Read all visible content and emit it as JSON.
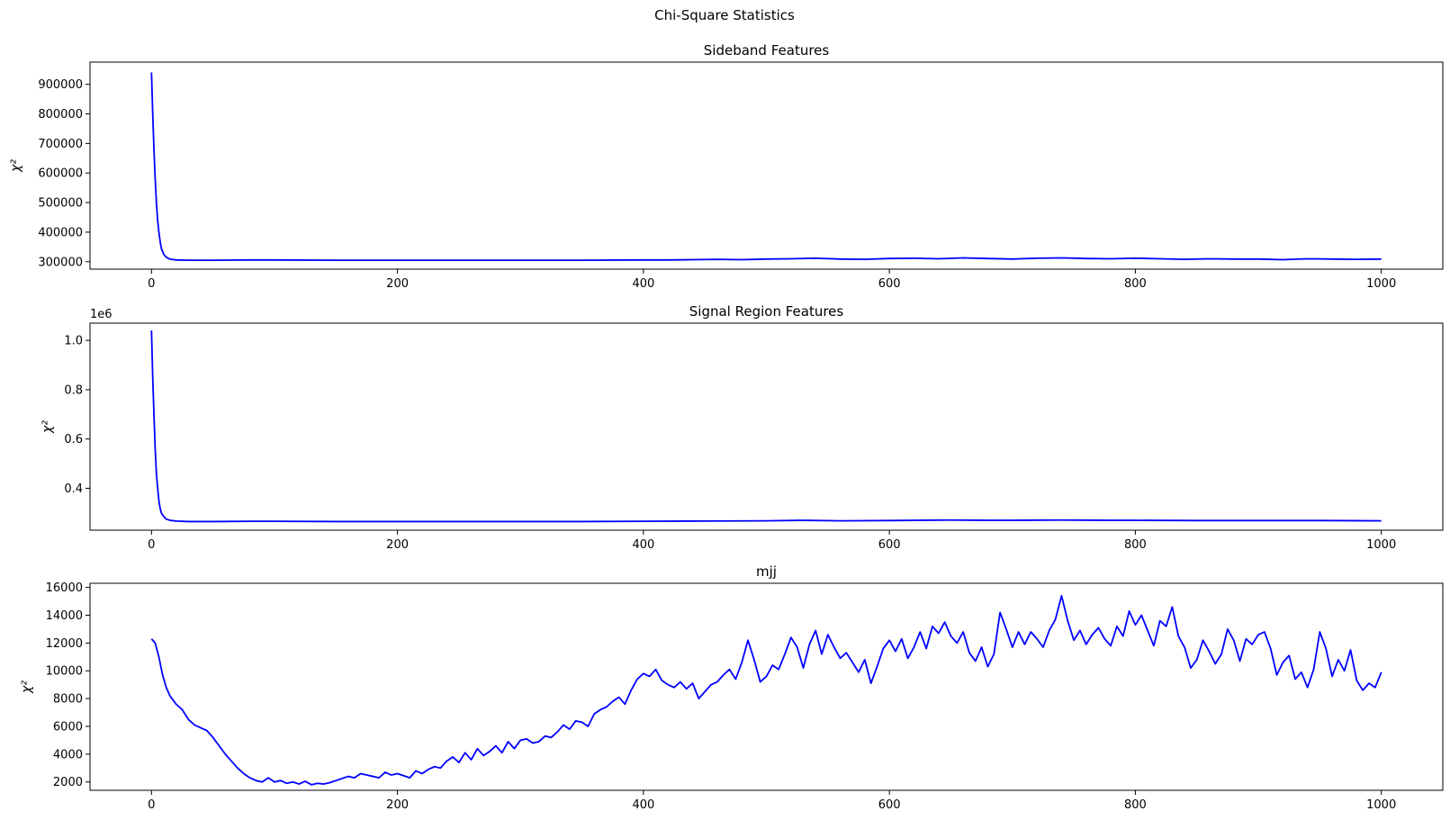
{
  "figure": {
    "suptitle": "Chi-Square Statistics"
  },
  "chart_data": [
    {
      "type": "line",
      "title": "Sideband Features",
      "xlabel": "",
      "ylabel": "χ²",
      "offset_label": "",
      "xlim": [
        -50,
        1050
      ],
      "ylim": [
        275000,
        975000
      ],
      "xticks": [
        0,
        200,
        400,
        600,
        800,
        1000
      ],
      "yticks": [
        300000,
        400000,
        500000,
        600000,
        700000,
        800000,
        900000
      ],
      "ytick_labels": [
        "300000",
        "400000",
        "500000",
        "600000",
        "700000",
        "800000",
        "900000"
      ],
      "grid": false,
      "color": "#0000ff",
      "x": [
        0,
        1,
        2,
        3,
        4,
        5,
        6,
        7,
        8,
        10,
        12,
        15,
        20,
        30,
        50,
        80,
        100,
        150,
        200,
        250,
        300,
        350,
        400,
        420,
        440,
        460,
        480,
        500,
        520,
        540,
        560,
        580,
        600,
        620,
        640,
        660,
        680,
        700,
        720,
        740,
        760,
        780,
        800,
        820,
        840,
        860,
        880,
        900,
        920,
        940,
        960,
        980,
        1000
      ],
      "y": [
        940000,
        800000,
        680000,
        580000,
        500000,
        440000,
        400000,
        370000,
        345000,
        325000,
        315000,
        309000,
        306000,
        305000,
        305000,
        306000,
        306000,
        305000,
        305000,
        305000,
        305000,
        305000,
        306000,
        306000,
        307000,
        308000,
        307000,
        309000,
        310000,
        312000,
        309000,
        308000,
        311000,
        312000,
        310000,
        313000,
        311000,
        309000,
        312000,
        313000,
        311000,
        310000,
        312000,
        310000,
        308000,
        310000,
        309000,
        309000,
        307000,
        310000,
        309000,
        308000,
        309000
      ]
    },
    {
      "type": "line",
      "title": "Signal Region Features",
      "xlabel": "",
      "ylabel": "χ²",
      "offset_label": "1e6",
      "xlim": [
        -50,
        1050
      ],
      "ylim": [
        0.23,
        1.07
      ],
      "xticks": [
        0,
        200,
        400,
        600,
        800,
        1000
      ],
      "yticks": [
        0.4,
        0.6,
        0.8,
        1.0
      ],
      "ytick_labels": [
        "0.4",
        "0.6",
        "0.8",
        "1.0"
      ],
      "grid": false,
      "color": "#0000ff",
      "x": [
        0,
        1,
        2,
        3,
        4,
        5,
        6,
        7,
        8,
        10,
        12,
        15,
        20,
        30,
        50,
        80,
        100,
        150,
        200,
        250,
        300,
        350,
        400,
        450,
        500,
        530,
        560,
        600,
        620,
        650,
        680,
        700,
        740,
        780,
        800,
        850,
        900,
        950,
        1000
      ],
      "y": [
        1.04,
        0.85,
        0.7,
        0.56,
        0.46,
        0.4,
        0.35,
        0.32,
        0.3,
        0.285,
        0.275,
        0.27,
        0.267,
        0.265,
        0.265,
        0.266,
        0.266,
        0.265,
        0.265,
        0.265,
        0.265,
        0.265,
        0.266,
        0.267,
        0.268,
        0.27,
        0.268,
        0.269,
        0.27,
        0.271,
        0.27,
        0.27,
        0.271,
        0.27,
        0.27,
        0.269,
        0.269,
        0.269,
        0.268
      ]
    },
    {
      "type": "line",
      "title": "mjj",
      "xlabel": "",
      "ylabel": "χ²",
      "offset_label": "",
      "xlim": [
        -50,
        1050
      ],
      "ylim": [
        1400,
        16300
      ],
      "xticks": [
        0,
        200,
        400,
        600,
        800,
        1000
      ],
      "yticks": [
        2000,
        4000,
        6000,
        8000,
        10000,
        12000,
        14000,
        16000
      ],
      "ytick_labels": [
        "2000",
        "4000",
        "6000",
        "8000",
        "10000",
        "12000",
        "14000",
        "16000"
      ],
      "grid": false,
      "color": "#0000ff",
      "x": [
        0,
        3,
        6,
        9,
        12,
        15,
        20,
        25,
        30,
        35,
        40,
        45,
        50,
        55,
        60,
        65,
        70,
        75,
        80,
        85,
        90,
        95,
        100,
        105,
        110,
        115,
        120,
        125,
        130,
        135,
        140,
        145,
        150,
        155,
        160,
        165,
        170,
        175,
        180,
        185,
        190,
        195,
        200,
        205,
        210,
        215,
        220,
        225,
        230,
        235,
        240,
        245,
        250,
        255,
        260,
        265,
        270,
        275,
        280,
        285,
        290,
        295,
        300,
        305,
        310,
        315,
        320,
        325,
        330,
        335,
        340,
        345,
        350,
        355,
        360,
        365,
        370,
        375,
        380,
        385,
        390,
        395,
        400,
        405,
        410,
        415,
        420,
        425,
        430,
        435,
        440,
        445,
        450,
        455,
        460,
        465,
        470,
        475,
        480,
        485,
        490,
        495,
        500,
        505,
        510,
        515,
        520,
        525,
        530,
        535,
        540,
        545,
        550,
        555,
        560,
        565,
        570,
        575,
        580,
        585,
        590,
        595,
        600,
        605,
        610,
        615,
        620,
        625,
        630,
        635,
        640,
        645,
        650,
        655,
        660,
        665,
        670,
        675,
        680,
        685,
        690,
        695,
        700,
        705,
        710,
        715,
        720,
        725,
        730,
        735,
        740,
        745,
        750,
        755,
        760,
        765,
        770,
        775,
        780,
        785,
        790,
        795,
        800,
        805,
        810,
        815,
        820,
        825,
        830,
        835,
        840,
        845,
        850,
        855,
        860,
        865,
        870,
        875,
        880,
        885,
        890,
        895,
        900,
        905,
        910,
        915,
        920,
        925,
        930,
        935,
        940,
        945,
        950,
        955,
        960,
        965,
        970,
        975,
        980,
        985,
        990,
        995,
        1000
      ],
      "y": [
        12300,
        12000,
        11000,
        9700,
        8800,
        8200,
        7600,
        7200,
        6500,
        6100,
        5900,
        5700,
        5200,
        4600,
        4000,
        3500,
        3000,
        2600,
        2300,
        2100,
        2000,
        2300,
        2000,
        2100,
        1900,
        2000,
        1850,
        2050,
        1800,
        1900,
        1850,
        1950,
        2100,
        2250,
        2400,
        2300,
        2600,
        2500,
        2400,
        2300,
        2700,
        2500,
        2600,
        2450,
        2300,
        2800,
        2600,
        2900,
        3100,
        3000,
        3500,
        3800,
        3400,
        4100,
        3600,
        4400,
        3900,
        4200,
        4600,
        4100,
        4900,
        4400,
        5000,
        5100,
        4800,
        4900,
        5300,
        5200,
        5600,
        6100,
        5800,
        6400,
        6300,
        6000,
        6900,
        7200,
        7400,
        7800,
        8100,
        7600,
        8600,
        9400,
        9800,
        9600,
        10100,
        9300,
        9000,
        8800,
        9200,
        8700,
        9100,
        8000,
        8500,
        9000,
        9200,
        9700,
        10100,
        9400,
        10600,
        12200,
        10800,
        9200,
        9600,
        10400,
        10100,
        11200,
        12400,
        11700,
        10200,
        11900,
        12900,
        11200,
        12600,
        11700,
        10900,
        11300,
        10600,
        9900,
        10800,
        9100,
        10300,
        11600,
        12200,
        11400,
        12300,
        10900,
        11700,
        12800,
        11600,
        13200,
        12700,
        13500,
        12500,
        12000,
        12800,
        11300,
        10700,
        11700,
        10300,
        11200,
        14200,
        13000,
        11700,
        12800,
        11900,
        12800,
        12300,
        11700,
        12900,
        13700,
        15400,
        13600,
        12200,
        12900,
        11900,
        12600,
        13100,
        12300,
        11800,
        13200,
        12500,
        14300,
        13300,
        14000,
        12900,
        11800,
        13600,
        13200,
        14600,
        12500,
        11700,
        10200,
        10800,
        12200,
        11400,
        10500,
        11200,
        13000,
        12200,
        10700,
        12300,
        11900,
        12600,
        12800,
        11600,
        9700,
        10600,
        11100,
        9400,
        9900,
        8800,
        10100,
        12800,
        11600,
        9600,
        10800,
        10000,
        11500,
        9300,
        8600,
        9100,
        8800,
        9900
      ]
    }
  ]
}
